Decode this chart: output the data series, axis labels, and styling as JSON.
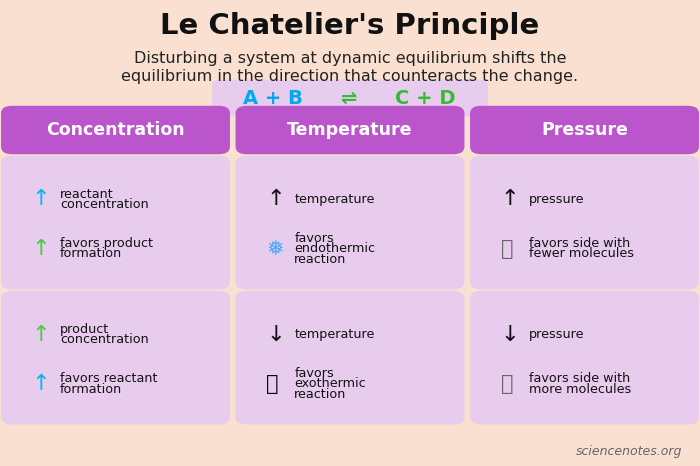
{
  "title": "Le Chatelier's Principle",
  "subtitle_line1": "Disturbing a system at dynamic equilibrium shifts the",
  "subtitle_line2": "equilibrium in the direction that counteracts the change.",
  "bg_color": "#FAE0D0",
  "header_color": "#BB55CC",
  "box_color": "#E8CCEE",
  "header_text_color": "#FFFFFF",
  "title_color": "#111111",
  "subtitle_color": "#222222",
  "columns": [
    "Concentration",
    "Temperature",
    "Pressure"
  ],
  "eq_left": "A + B",
  "eq_arrow": "⇌",
  "eq_right": "C + D",
  "eq_left_color": "#00AAEE",
  "eq_arrow_color": "#33BB33",
  "eq_right_color": "#33BB33",
  "cells": [
    {
      "col": 0,
      "row": 0,
      "lines": [
        {
          "icon": "↑",
          "icon_color": "#00BBEE",
          "text": [
            "reactant",
            "concentration"
          ]
        },
        {
          "icon": "↑",
          "icon_color": "#44CC44",
          "text": [
            "favors product",
            "formation"
          ]
        }
      ]
    },
    {
      "col": 0,
      "row": 1,
      "lines": [
        {
          "icon": "↑",
          "icon_color": "#44CC44",
          "text": [
            "product",
            "concentration"
          ]
        },
        {
          "icon": "↑",
          "icon_color": "#00BBEE",
          "text": [
            "favors reactant",
            "formation"
          ]
        }
      ]
    },
    {
      "col": 1,
      "row": 0,
      "lines": [
        {
          "icon": "↑",
          "icon_color": "#111111",
          "text": [
            "temperature",
            ""
          ]
        },
        {
          "icon": "❅",
          "icon_color": "#44AAFF",
          "text": [
            "favors",
            "endothermic",
            "reaction"
          ]
        }
      ]
    },
    {
      "col": 1,
      "row": 1,
      "lines": [
        {
          "icon": "↓",
          "icon_color": "#111111",
          "text": [
            "temperature",
            ""
          ]
        },
        {
          "icon": "🔥",
          "icon_color": null,
          "text": [
            "favors",
            "exothermic",
            "reaction"
          ]
        }
      ]
    },
    {
      "col": 2,
      "row": 0,
      "lines": [
        {
          "icon": "↑",
          "icon_color": "#111111",
          "text": [
            "pressure",
            ""
          ]
        },
        {
          "icon": "⛓",
          "icon_color": "#666666",
          "text": [
            "favors side with",
            "fewer molecules"
          ]
        }
      ]
    },
    {
      "col": 2,
      "row": 1,
      "lines": [
        {
          "icon": "↓",
          "icon_color": "#111111",
          "text": [
            "pressure",
            ""
          ]
        },
        {
          "icon": "⛓",
          "icon_color": "#666666",
          "text": [
            "favors side with",
            "more molecules"
          ]
        }
      ]
    }
  ],
  "watermark": "sciencenotes.org"
}
